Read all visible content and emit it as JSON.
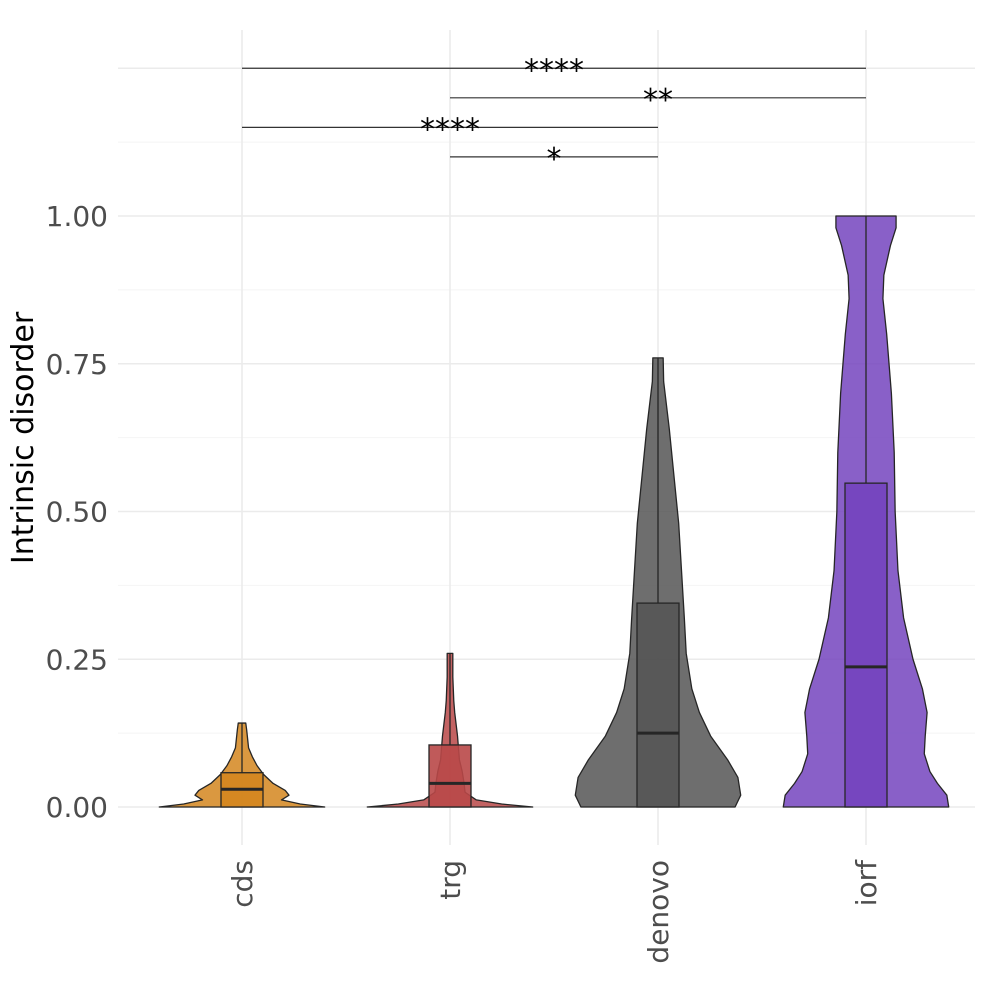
{
  "chart_data": {
    "type": "violin",
    "title": "",
    "xlabel": "",
    "ylabel": "Intrinsic disorder",
    "ylim": [
      -0.06,
      1.3
    ],
    "y_ticks": [
      {
        "value": 0.0,
        "label": "0.00"
      },
      {
        "value": 0.25,
        "label": "0.25"
      },
      {
        "value": 0.5,
        "label": "0.50"
      },
      {
        "value": 0.75,
        "label": "0.75"
      },
      {
        "value": 1.0,
        "label": "1.00"
      }
    ],
    "grid": true,
    "legend": "none",
    "categories": [
      "cds",
      "trg",
      "denovo",
      "iorf"
    ],
    "groups": [
      {
        "name": "cds",
        "color": "#d4861f",
        "box": {
          "q1": 0.0,
          "median": 0.03,
          "q3": 0.058,
          "whisker_low": 0.0,
          "whisker_high": 0.142
        },
        "density": [
          [
            0.0,
            0.88
          ],
          [
            0.005,
            0.62
          ],
          [
            0.012,
            0.42
          ],
          [
            0.02,
            0.5
          ],
          [
            0.028,
            0.46
          ],
          [
            0.04,
            0.33
          ],
          [
            0.055,
            0.23
          ],
          [
            0.07,
            0.16
          ],
          [
            0.085,
            0.11
          ],
          [
            0.1,
            0.07
          ],
          [
            0.115,
            0.06
          ],
          [
            0.13,
            0.05
          ],
          [
            0.142,
            0.04
          ]
        ]
      },
      {
        "name": "trg",
        "color": "#b94848",
        "box": {
          "q1": 0.0,
          "median": 0.04,
          "q3": 0.105,
          "whisker_low": 0.0,
          "whisker_high": 0.26
        },
        "density": [
          [
            0.0,
            0.88
          ],
          [
            0.005,
            0.55
          ],
          [
            0.012,
            0.28
          ],
          [
            0.025,
            0.16
          ],
          [
            0.04,
            0.15
          ],
          [
            0.06,
            0.13
          ],
          [
            0.08,
            0.1
          ],
          [
            0.1,
            0.09
          ],
          [
            0.12,
            0.08
          ],
          [
            0.14,
            0.065
          ],
          [
            0.16,
            0.05
          ],
          [
            0.18,
            0.04
          ],
          [
            0.2,
            0.035
          ],
          [
            0.22,
            0.03
          ],
          [
            0.24,
            0.03
          ],
          [
            0.26,
            0.03
          ]
        ]
      },
      {
        "name": "denovo",
        "color": "#555555",
        "box": {
          "q1": 0.0,
          "median": 0.125,
          "q3": 0.345,
          "whisker_low": 0.0,
          "whisker_high": 0.76
        },
        "density": [
          [
            0.0,
            0.82
          ],
          [
            0.02,
            0.88
          ],
          [
            0.05,
            0.85
          ],
          [
            0.08,
            0.74
          ],
          [
            0.12,
            0.56
          ],
          [
            0.16,
            0.44
          ],
          [
            0.2,
            0.36
          ],
          [
            0.26,
            0.3
          ],
          [
            0.32,
            0.28
          ],
          [
            0.4,
            0.25
          ],
          [
            0.48,
            0.22
          ],
          [
            0.56,
            0.17
          ],
          [
            0.64,
            0.12
          ],
          [
            0.72,
            0.06
          ],
          [
            0.76,
            0.055
          ]
        ]
      },
      {
        "name": "iorf",
        "color": "#7444be",
        "box": {
          "q1": 0.0,
          "median": 0.237,
          "q3": 0.548,
          "whisker_low": 0.0,
          "whisker_high": 1.0
        },
        "density": [
          [
            0.0,
            0.88
          ],
          [
            0.02,
            0.86
          ],
          [
            0.04,
            0.76
          ],
          [
            0.06,
            0.68
          ],
          [
            0.09,
            0.62
          ],
          [
            0.12,
            0.63
          ],
          [
            0.16,
            0.65
          ],
          [
            0.2,
            0.6
          ],
          [
            0.25,
            0.5
          ],
          [
            0.32,
            0.4
          ],
          [
            0.4,
            0.34
          ],
          [
            0.5,
            0.31
          ],
          [
            0.6,
            0.3
          ],
          [
            0.7,
            0.27
          ],
          [
            0.8,
            0.22
          ],
          [
            0.86,
            0.18
          ],
          [
            0.9,
            0.19
          ],
          [
            0.95,
            0.26
          ],
          [
            0.98,
            0.32
          ],
          [
            1.0,
            0.32
          ]
        ]
      }
    ],
    "comparisons": [
      {
        "from": "cds",
        "to": "iorf",
        "y": 1.25,
        "label": "****"
      },
      {
        "from": "trg",
        "to": "iorf",
        "y": 1.2,
        "label": "**"
      },
      {
        "from": "cds",
        "to": "denovo",
        "y": 1.15,
        "label": "****"
      },
      {
        "from": "trg",
        "to": "denovo",
        "y": 1.1,
        "label": "*"
      }
    ]
  }
}
